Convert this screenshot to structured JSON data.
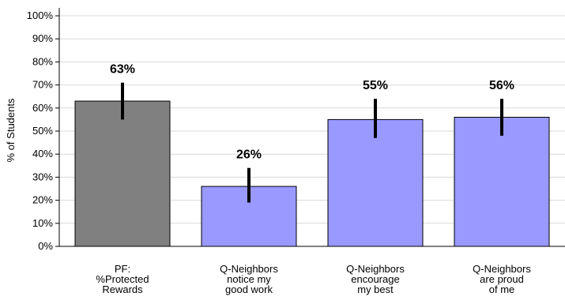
{
  "chart_data": {
    "type": "bar",
    "title": "",
    "xlabel": "",
    "ylabel": "% of Students",
    "ylim": [
      0,
      100
    ],
    "yticks": [
      "0%",
      "10%",
      "20%",
      "30%",
      "40%",
      "50%",
      "60%",
      "70%",
      "80%",
      "90%",
      "100%"
    ],
    "grid": true,
    "legend": "none",
    "categories": [
      [
        "PF:",
        "%Protected",
        "Rewards"
      ],
      [
        "Q-Neighbors",
        "notice my",
        "good work"
      ],
      [
        "Q-Neighbors",
        "encourage",
        "my best"
      ],
      [
        "Q-Neighbors",
        "are proud",
        "of me"
      ]
    ],
    "values": [
      63,
      26,
      55,
      56
    ],
    "data_labels": [
      "63%",
      "26%",
      "55%",
      "56%"
    ],
    "error_low": [
      55,
      19,
      47,
      48
    ],
    "error_high": [
      71,
      34,
      64,
      64
    ],
    "colors": [
      "#808080",
      "#9999ff",
      "#9999ff",
      "#9999ff"
    ],
    "grid_color": "#d9d9d9",
    "errorbar_color": "#000000"
  }
}
